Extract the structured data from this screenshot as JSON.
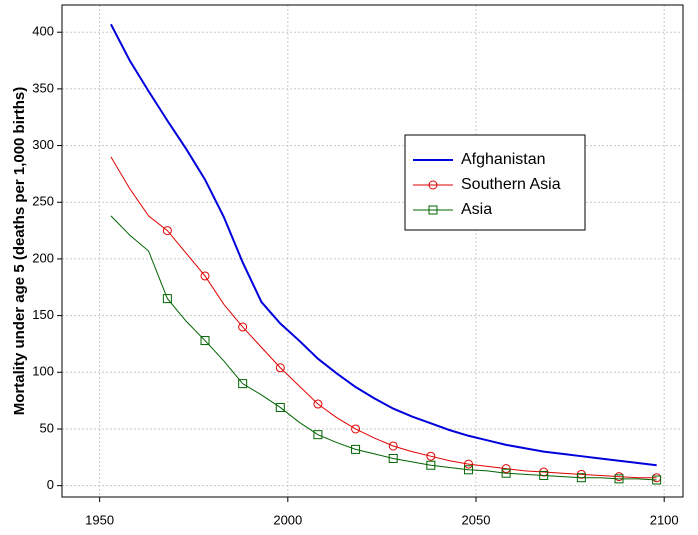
{
  "chart_data": {
    "type": "line",
    "y_label": "Mortality under age 5 (deaths per 1,000 births)",
    "x": [
      1953,
      1958,
      1963,
      1968,
      1973,
      1978,
      1983,
      1988,
      1993,
      1998,
      2003,
      2008,
      2013,
      2018,
      2023,
      2028,
      2033,
      2038,
      2043,
      2048,
      2053,
      2058,
      2063,
      2068,
      2073,
      2078,
      2083,
      2088,
      2093,
      2098
    ],
    "series": [
      {
        "name": "Afghanistan",
        "color": "#0000dd",
        "marker": "none",
        "values": [
          407,
          375,
          348,
          322,
          297,
          270,
          237,
          197,
          162,
          143,
          128,
          112,
          99,
          87,
          77,
          68,
          61,
          55,
          49,
          44,
          40,
          36,
          33,
          30,
          28,
          26,
          24,
          22,
          20,
          18
        ]
      },
      {
        "name": "Southern Asia",
        "color": "#e00000",
        "marker": "circle",
        "values": [
          290,
          262,
          238,
          225,
          205,
          185,
          160,
          140,
          122,
          104,
          88,
          72,
          60,
          50,
          42,
          35,
          30,
          26,
          22,
          19,
          17,
          15,
          13,
          12,
          11,
          10,
          9,
          8,
          7,
          7
        ]
      },
      {
        "name": "Asia",
        "color": "#006400",
        "marker": "square",
        "values": [
          238,
          221,
          207,
          165,
          145,
          128,
          110,
          90,
          80,
          69,
          56,
          45,
          38,
          32,
          28,
          24,
          21,
          18,
          16,
          14,
          13,
          11,
          10,
          9,
          8,
          7,
          7,
          6,
          6,
          5
        ]
      }
    ],
    "xlim": [
      1940,
      2105
    ],
    "ylim": [
      -10,
      424
    ],
    "xticks": [
      1950,
      2000,
      2050,
      2100
    ],
    "yticks": [
      0,
      50,
      100,
      150,
      200,
      250,
      300,
      350,
      400
    ],
    "grid": true,
    "legend": "upper right"
  }
}
